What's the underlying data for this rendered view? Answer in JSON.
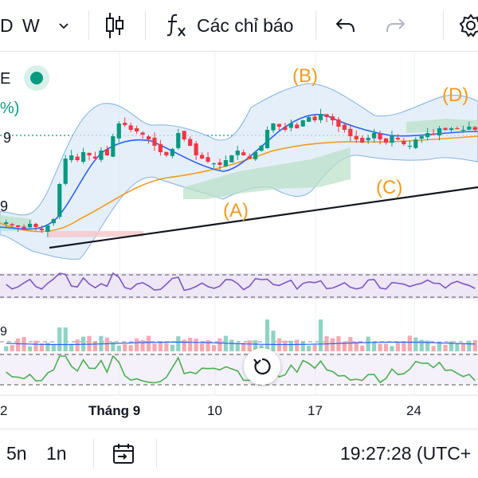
{
  "toolbar": {
    "interval_cut": "D",
    "interval": "W",
    "indicators_label": "Các chỉ báo",
    "icons": [
      "chevron-down-icon",
      "candlestick-icon",
      "function-icon",
      "undo-icon",
      "redo-icon",
      "settings-icon"
    ]
  },
  "legend": {
    "symbol_cut": "E",
    "pct_cut": "%)",
    "price_cut_1": "9",
    "price_cut_2": "9"
  },
  "colors": {
    "up": "#089981",
    "down": "#f23645",
    "wave": "#f29b1d",
    "bb": "#2962ff",
    "rsi": "#7e57c2",
    "trend": "#131722",
    "osc": "#4caf50"
  },
  "chart_data": {
    "type": "candlestick",
    "x_ticks": [
      "2",
      "Tháng 9",
      "10",
      "17",
      "24"
    ],
    "annotations": [
      "(A)",
      "(B)",
      "(C)",
      "(D)"
    ],
    "wave_points": {
      "A": 0.18,
      "B": 0.86,
      "C": 0.52,
      "D": 0.9
    },
    "closes": [
      0.18,
      0.16,
      0.15,
      0.14,
      0.17,
      0.15,
      0.13,
      0.16,
      0.2,
      0.42,
      0.58,
      0.6,
      0.57,
      0.62,
      0.6,
      0.58,
      0.63,
      0.6,
      0.72,
      0.8,
      0.79,
      0.76,
      0.75,
      0.73,
      0.7,
      0.66,
      0.62,
      0.6,
      0.64,
      0.74,
      0.7,
      0.66,
      0.6,
      0.58,
      0.56,
      0.55,
      0.54,
      0.57,
      0.6,
      0.63,
      0.6,
      0.58,
      0.62,
      0.66,
      0.76,
      0.8,
      0.78,
      0.76,
      0.8,
      0.77,
      0.82,
      0.84,
      0.82,
      0.86,
      0.84,
      0.82,
      0.78,
      0.76,
      0.72,
      0.7,
      0.68,
      0.71,
      0.74,
      0.7,
      0.68,
      0.72,
      0.7,
      0.67,
      0.66,
      0.7,
      0.72,
      0.74,
      0.73,
      0.77,
      0.76,
      0.77,
      0.77,
      0.76,
      0.78,
      0.76
    ],
    "rsi_note": "range-bound oscillator band",
    "volume_note": "histogram with spikes near 17"
  },
  "bottombar": {
    "range_5y": "5n",
    "range_1y": "1n",
    "time": "19:27:28 (UTC+",
    "icons": [
      "calendar-goto-icon"
    ]
  }
}
